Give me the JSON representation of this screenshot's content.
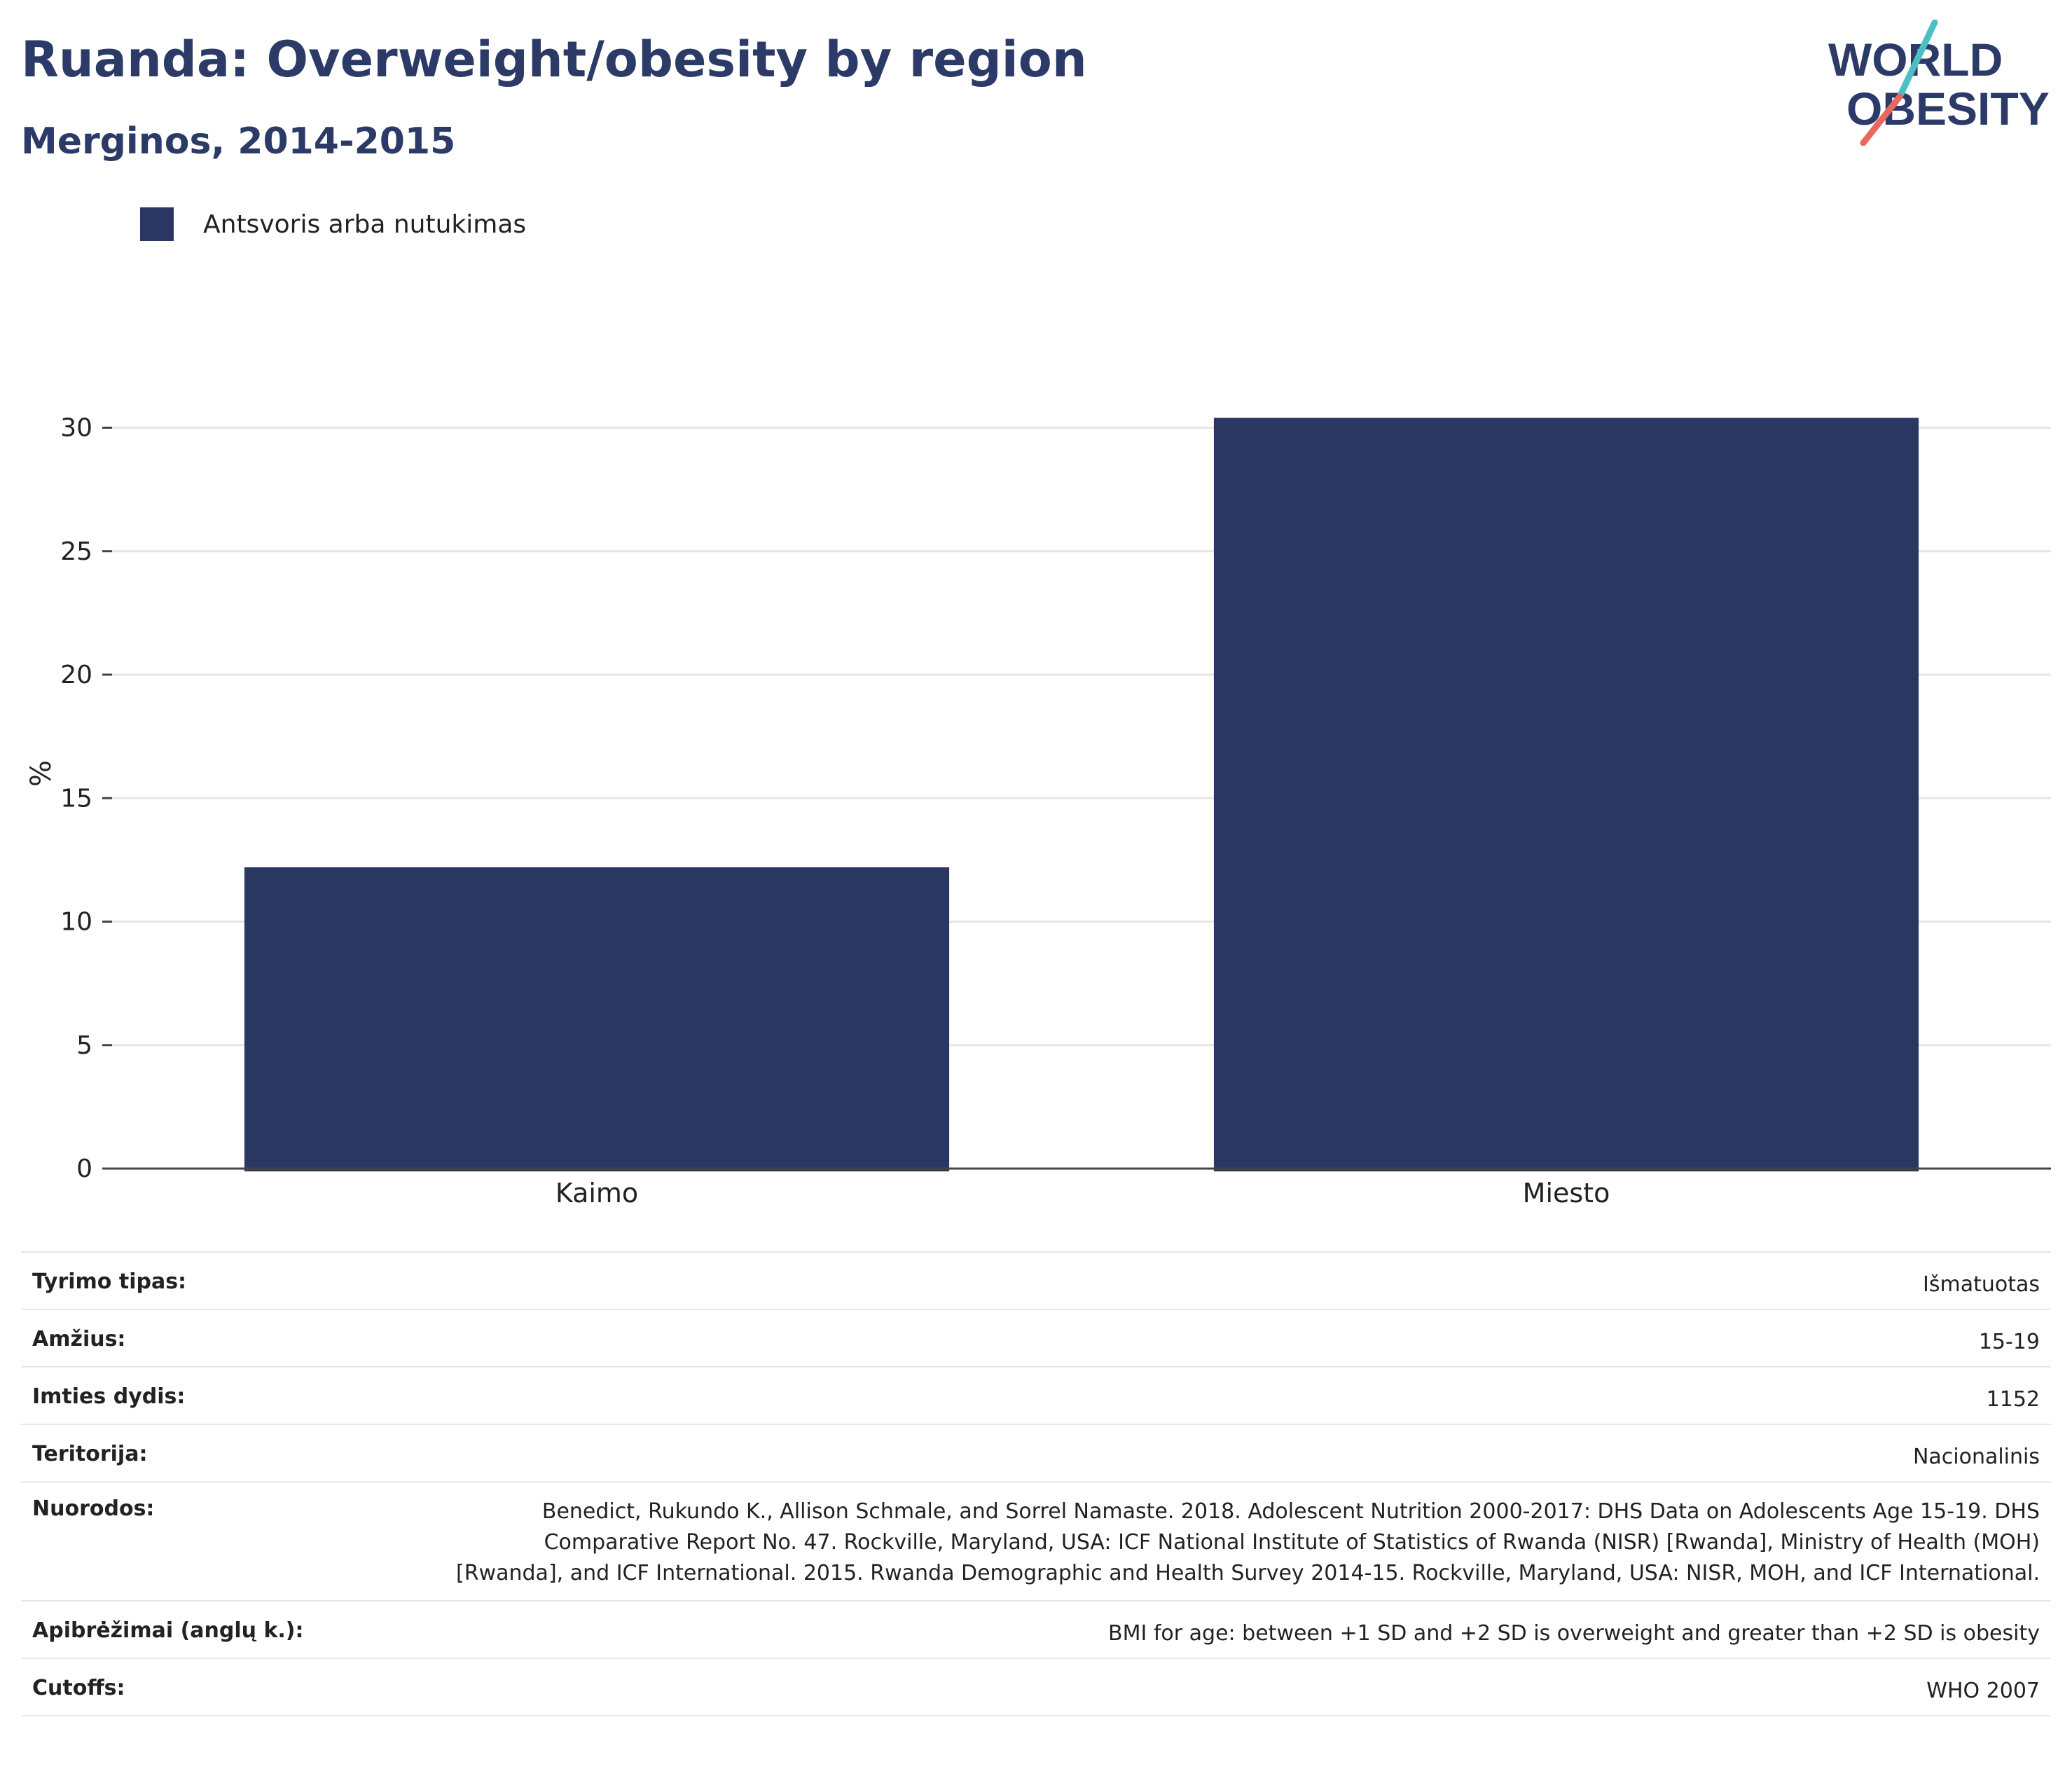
{
  "header": {
    "title": "Ruanda: Overweight/obesity by region",
    "subtitle": "Merginos, 2014-2015"
  },
  "logo": {
    "line1": "WORLD",
    "line2": "OBESITY",
    "colors": {
      "text": "#2b3a67",
      "slash_top": "#4bbfc4",
      "slash_bottom": "#e8685d"
    }
  },
  "legend": {
    "items": [
      {
        "label": "Antsvoris arba nutukimas",
        "color": "#2b3763"
      }
    ]
  },
  "chart_data": {
    "type": "bar",
    "categories": [
      "Kaimo",
      "Miesto"
    ],
    "series": [
      {
        "name": "Antsvoris arba nutukimas",
        "values": [
          12.2,
          30.4
        ],
        "color": "#2b3763"
      }
    ],
    "ylabel": "%",
    "xlabel": "",
    "ylim": [
      0,
      32
    ],
    "yticks": [
      0,
      5,
      10,
      15,
      20,
      25,
      30
    ],
    "grid": true,
    "legend_position": "top-left"
  },
  "info": {
    "rows": [
      {
        "key": "Tyrimo tipas:",
        "value": "Išmatuotas"
      },
      {
        "key": "Amžius:",
        "value": "15-19"
      },
      {
        "key": "Imties dydis:",
        "value": "1152"
      },
      {
        "key": "Teritorija:",
        "value": "Nacionalinis"
      },
      {
        "key": "Nuorodos:",
        "value": "Benedict, Rukundo K., Allison Schmale, and Sorrel Namaste. 2018. Adolescent Nutrition 2000-2017: DHS Data on Adolescents Age 15-19. DHS Comparative Report No. 47. Rockville, Maryland, USA: ICF National Institute of Statistics of Rwanda (NISR) [Rwanda], Ministry of Health (MOH) [Rwanda], and ICF International. 2015. Rwanda Demographic and Health Survey 2014-15. Rockville, Maryland, USA: NISR, MOH, and ICF International."
      },
      {
        "key": "Apibrėžimai (anglų k.):",
        "value": "BMI for age: between +1 SD and +2 SD is overweight and greater than +2 SD is obesity"
      },
      {
        "key": "Cutoffs:",
        "value": "WHO 2007"
      }
    ]
  }
}
